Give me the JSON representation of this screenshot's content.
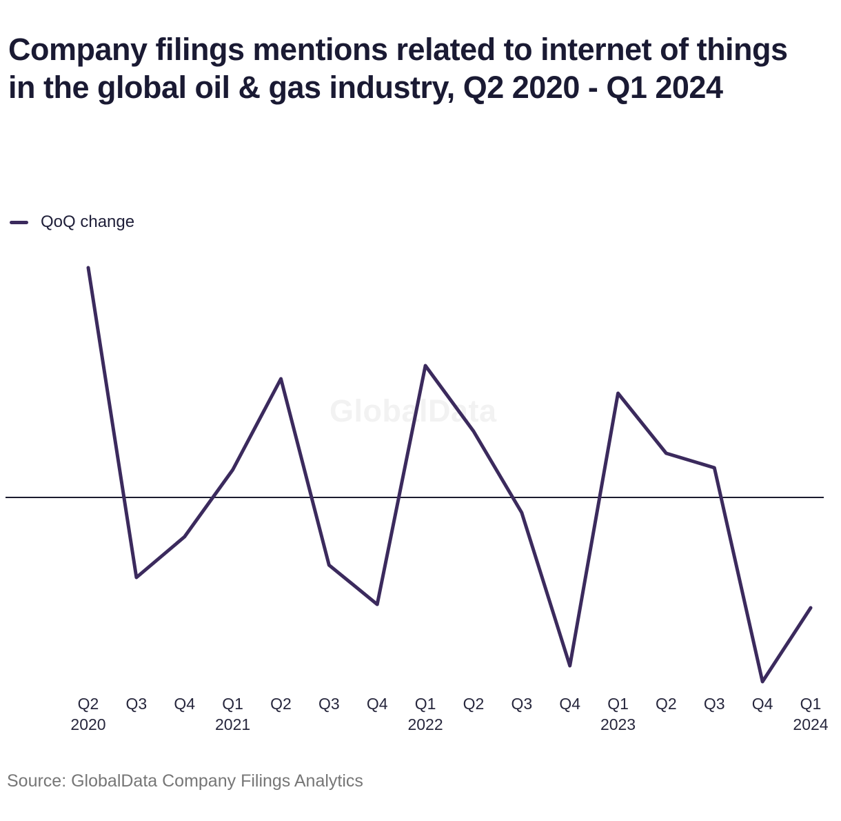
{
  "title": "Company filings mentions related to internet of things in the global oil & gas industry, Q2 2020 - Q1 2024",
  "legend": {
    "label": "QoQ change"
  },
  "watermark": "GlobalData",
  "source": "Source: GlobalData Company Filings Analytics",
  "colors": {
    "line": "#3b2a5d",
    "zero_axis": "#1a1a2e",
    "tick_text": "#26263c",
    "title_text": "#1a1a33",
    "source_text": "#767676",
    "watermark": "#f2f2f2"
  },
  "chart_data": {
    "type": "line",
    "title": "Company filings mentions related to internet of things in the global oil & gas industry, Q2 2020 - Q1 2024",
    "xlabel": "",
    "ylabel": "",
    "y_axis_labeled": false,
    "units": "relative QoQ change (no y-axis scale shown; values estimated from plot, zero line shown)",
    "zero_line": true,
    "grid": false,
    "legend_position": "top-left",
    "categories": [
      "Q2 2020",
      "Q3 2020",
      "Q4 2020",
      "Q1 2021",
      "Q2 2021",
      "Q3 2021",
      "Q4 2021",
      "Q1 2022",
      "Q2 2022",
      "Q3 2022",
      "Q4 2022",
      "Q1 2023",
      "Q2 2023",
      "Q3 2023",
      "Q4 2023",
      "Q1 2024"
    ],
    "tick_labels": [
      {
        "q": "Q2",
        "year": "2020"
      },
      {
        "q": "Q3",
        "year": ""
      },
      {
        "q": "Q4",
        "year": ""
      },
      {
        "q": "Q1",
        "year": "2021"
      },
      {
        "q": "Q2",
        "year": ""
      },
      {
        "q": "Q3",
        "year": ""
      },
      {
        "q": "Q4",
        "year": ""
      },
      {
        "q": "Q1",
        "year": "2022"
      },
      {
        "q": "Q2",
        "year": ""
      },
      {
        "q": "Q3",
        "year": ""
      },
      {
        "q": "Q4",
        "year": ""
      },
      {
        "q": "Q1",
        "year": "2023"
      },
      {
        "q": "Q2",
        "year": ""
      },
      {
        "q": "Q3",
        "year": ""
      },
      {
        "q": "Q4",
        "year": ""
      },
      {
        "q": "Q1",
        "year": "2024"
      }
    ],
    "series": [
      {
        "name": "QoQ change",
        "values": [
          333,
          -116,
          -57,
          40,
          172,
          -98,
          -155,
          191,
          96,
          -22,
          -244,
          151,
          64,
          43,
          -267,
          -160
        ]
      }
    ]
  }
}
